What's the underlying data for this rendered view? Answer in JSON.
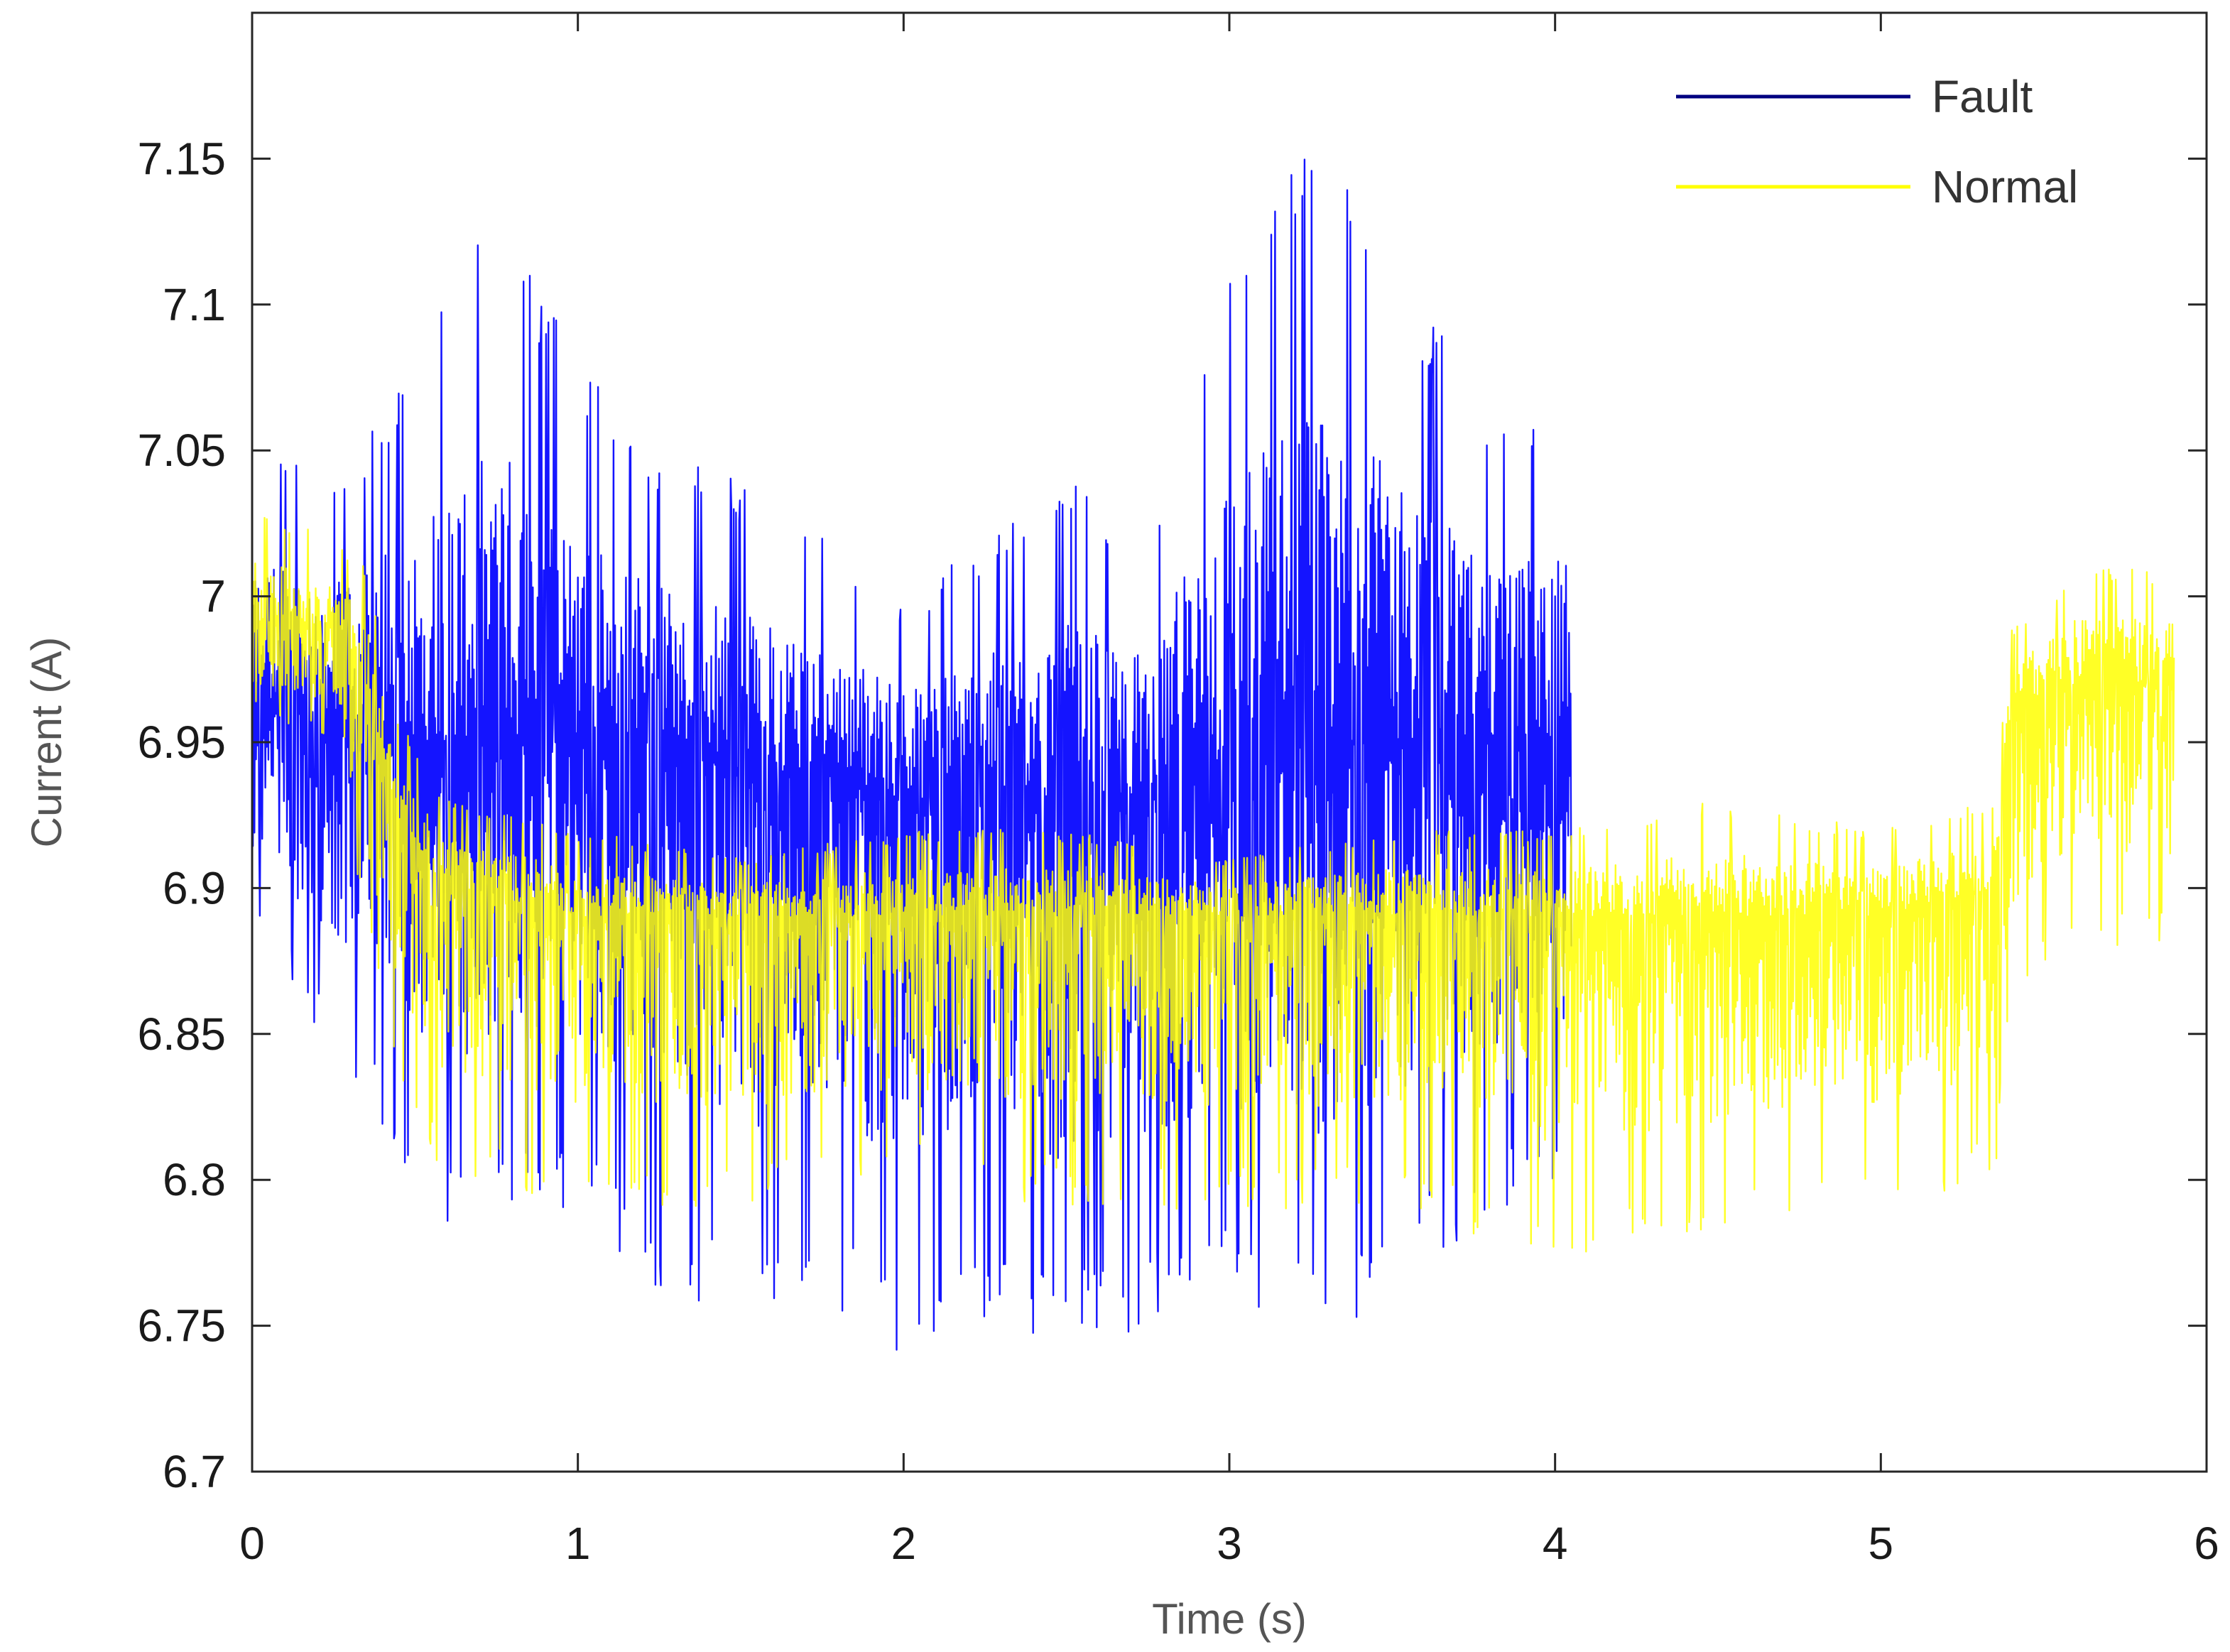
{
  "chart_data": {
    "type": "line",
    "title": "",
    "xlabel": "Time (s)",
    "ylabel": "Current (A)",
    "xlim": [
      0,
      6
    ],
    "ylim": [
      6.7,
      7.2
    ],
    "xticks": [
      0,
      1,
      2,
      3,
      4,
      5,
      6
    ],
    "xtick_labels": [
      "0",
      "1",
      "2",
      "3",
      "4",
      "5",
      "6"
    ],
    "yticks": [
      6.7,
      6.75,
      6.8,
      6.85,
      6.9,
      6.95,
      7.0,
      7.05,
      7.1,
      7.15
    ],
    "ytick_labels": [
      "6.7",
      "6.75",
      "6.8",
      "6.85",
      "6.9",
      "6.95",
      "7",
      "7.05",
      "7.1",
      "7.15"
    ],
    "grid": false,
    "legend_position": "top-right",
    "series": [
      {
        "name": "Fault",
        "color": "#0000ff",
        "x": [
          0.0,
          0.25,
          0.5,
          0.55,
          0.75,
          1.0,
          1.25,
          1.5,
          1.75,
          2.0,
          2.25,
          2.5,
          2.75,
          3.0,
          3.25,
          3.5,
          3.75,
          4.0,
          4.05
        ],
        "upper": [
          7.06,
          7.04,
          7.08,
          7.1,
          7.14,
          7.08,
          7.05,
          7.04,
          7.02,
          7.0,
          7.02,
          7.04,
          7.02,
          7.13,
          7.16,
          7.12,
          7.07,
          7.06,
          7.1
        ],
        "center": [
          6.96,
          6.96,
          6.95,
          6.95,
          6.95,
          6.95,
          6.95,
          6.94,
          6.94,
          6.93,
          6.93,
          6.93,
          6.93,
          6.94,
          6.95,
          6.95,
          6.95,
          6.95,
          6.95
        ],
        "lower": [
          6.89,
          6.84,
          6.8,
          6.78,
          6.79,
          6.79,
          6.76,
          6.75,
          6.76,
          6.74,
          6.75,
          6.74,
          6.75,
          6.76,
          6.74,
          6.76,
          6.78,
          6.8,
          6.8
        ]
      },
      {
        "name": "Normal",
        "color": "#ffff00",
        "x": [
          0.0,
          0.25,
          0.35,
          0.45,
          0.6,
          1.0,
          1.5,
          2.0,
          2.5,
          3.0,
          3.5,
          4.0,
          4.5,
          5.0,
          5.35,
          5.4,
          5.6,
          5.9
        ],
        "upper": [
          7.03,
          7.02,
          7.01,
          6.96,
          6.93,
          6.92,
          6.91,
          6.92,
          6.92,
          6.91,
          6.92,
          6.92,
          6.93,
          6.92,
          6.93,
          6.99,
          7.01,
          7.01
        ],
        "center": [
          6.99,
          6.99,
          6.97,
          6.92,
          6.9,
          6.89,
          6.89,
          6.89,
          6.89,
          6.89,
          6.89,
          6.89,
          6.89,
          6.89,
          6.9,
          6.96,
          6.97,
          6.97
        ],
        "lower": [
          6.96,
          6.95,
          6.88,
          6.83,
          6.8,
          6.79,
          6.79,
          6.8,
          6.79,
          6.79,
          6.79,
          6.77,
          6.78,
          6.79,
          6.8,
          6.86,
          6.88,
          6.88
        ]
      }
    ]
  }
}
